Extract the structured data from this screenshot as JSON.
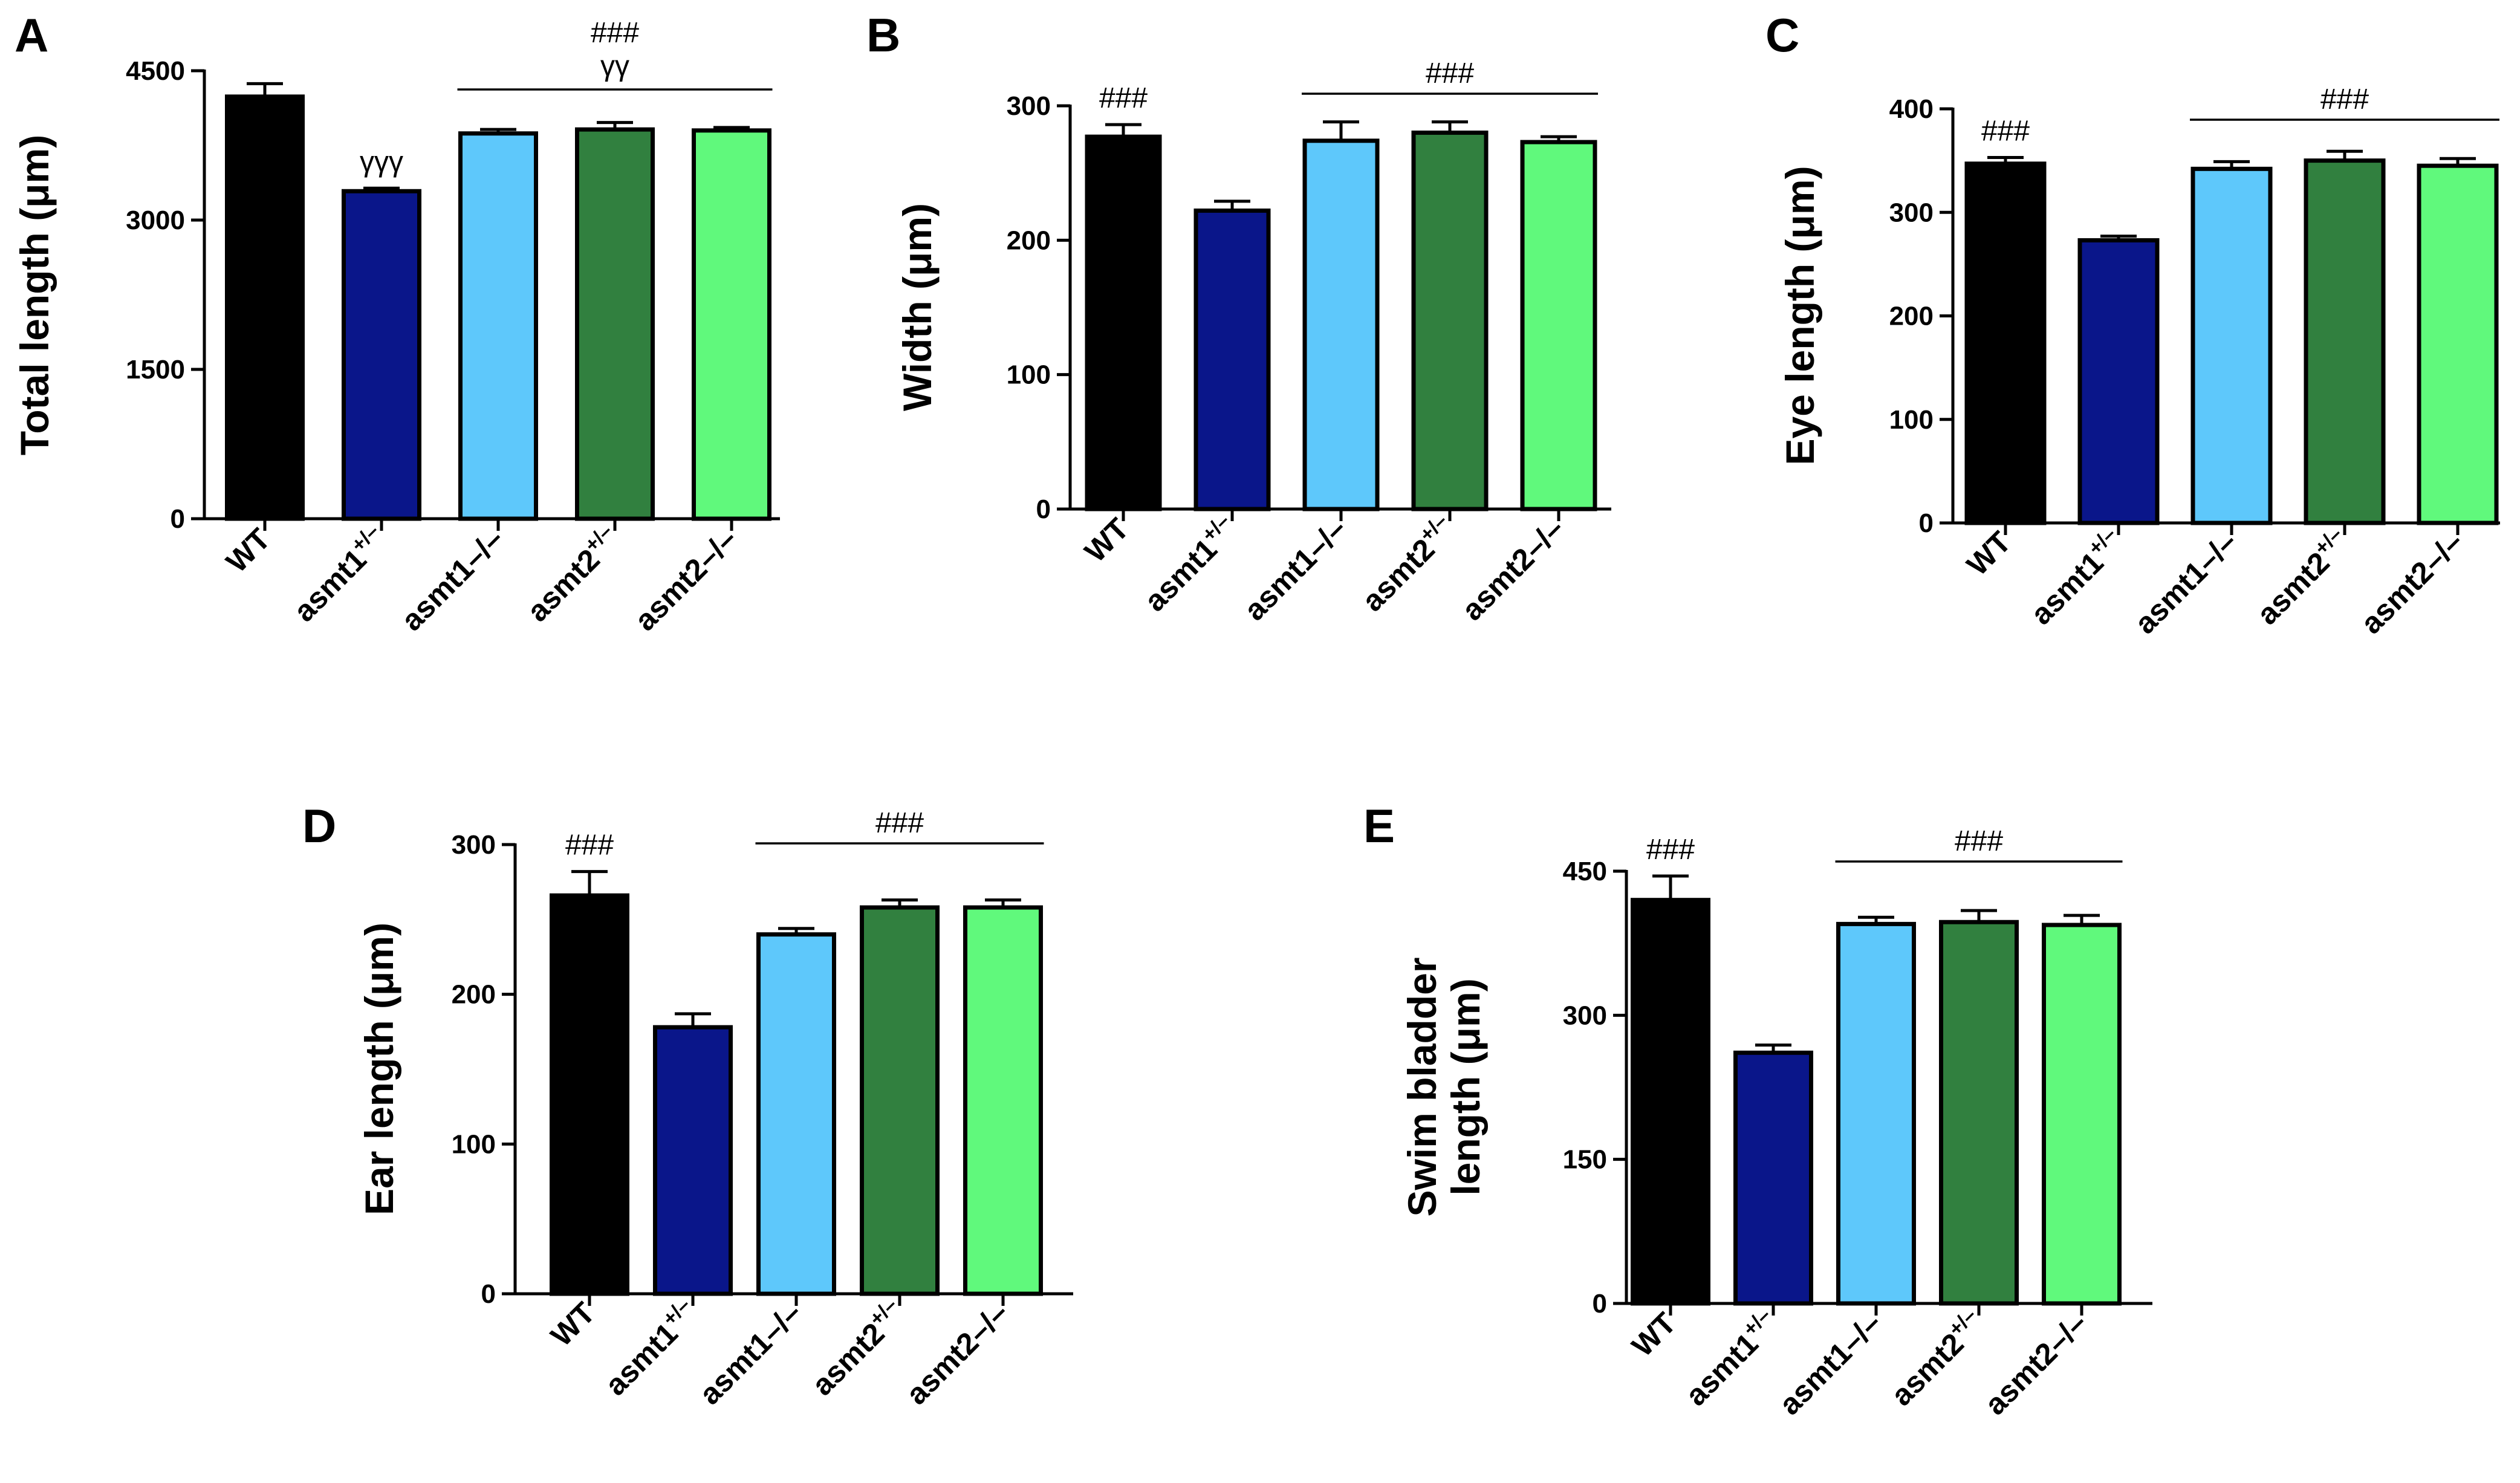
{
  "chart_data": [
    {
      "type": "bar",
      "panel": "A",
      "ylabel": "Total length (μm)",
      "ylim": [
        0,
        4500
      ],
      "yticks": [
        0,
        1500,
        3000,
        4500
      ],
      "categories": [
        {
          "base": "WT",
          "sup": ""
        },
        {
          "base": "asmt1",
          "sup": "+/–"
        },
        {
          "base": "asmt1–/–",
          "sup": ""
        },
        {
          "base": "asmt2",
          "sup": "+/–"
        },
        {
          "base": "asmt2–/–",
          "sup": ""
        }
      ],
      "values": [
        4240,
        3290,
        3870,
        3910,
        3900
      ],
      "errors": [
        130,
        30,
        40,
        70,
        30
      ],
      "colors": [
        "#000000",
        "#0a168a",
        "#5ec8fb",
        "#31803f",
        "#60f97c"
      ],
      "annotations": [
        {
          "text": "γγγ",
          "over": [
            1
          ]
        },
        {
          "text": "###",
          "over": [
            2,
            3,
            4
          ],
          "line": true,
          "row": 1
        },
        {
          "text": "γγ",
          "over": [
            2,
            3,
            4
          ],
          "row": 0
        }
      ]
    },
    {
      "type": "bar",
      "panel": "B",
      "ylabel": "Width (μm)",
      "ylim": [
        0,
        300
      ],
      "yticks": [
        0,
        100,
        200,
        300
      ],
      "categories": [
        {
          "base": "WT",
          "sup": ""
        },
        {
          "base": "asmt1",
          "sup": "+/–"
        },
        {
          "base": "asmt1–/–",
          "sup": ""
        },
        {
          "base": "asmt2",
          "sup": "+/–"
        },
        {
          "base": "asmt2–/–",
          "sup": ""
        }
      ],
      "values": [
        277,
        222,
        274,
        280,
        273
      ],
      "errors": [
        9,
        7,
        14,
        8,
        4
      ],
      "colors": [
        "#000000",
        "#0a168a",
        "#5ec8fb",
        "#31803f",
        "#60f97c"
      ],
      "annotations": [
        {
          "text": "###",
          "over": [
            0
          ]
        },
        {
          "text": "###",
          "over": [
            2,
            3,
            4
          ],
          "line": true,
          "row": 0
        }
      ]
    },
    {
      "type": "bar",
      "panel": "C",
      "ylabel": "Eye length (μm)",
      "ylim": [
        0,
        400
      ],
      "yticks": [
        0,
        100,
        200,
        300,
        400
      ],
      "categories": [
        {
          "base": "WT",
          "sup": ""
        },
        {
          "base": "asmt1",
          "sup": "+/–"
        },
        {
          "base": "asmt1–/–",
          "sup": ""
        },
        {
          "base": "asmt2",
          "sup": "+/–"
        },
        {
          "base": "asmt2–/–",
          "sup": ""
        }
      ],
      "values": [
        347,
        273,
        342,
        350,
        345
      ],
      "errors": [
        6,
        4,
        7,
        9,
        7
      ],
      "colors": [
        "#000000",
        "#0a168a",
        "#5ec8fb",
        "#31803f",
        "#60f97c"
      ],
      "annotations": [
        {
          "text": "###",
          "over": [
            0
          ]
        },
        {
          "text": "###",
          "over": [
            2,
            3,
            4
          ],
          "line": true,
          "row": 0
        }
      ]
    },
    {
      "type": "bar",
      "panel": "D",
      "ylabel": "Ear length (μm)",
      "ylim": [
        0,
        300
      ],
      "yticks": [
        0,
        100,
        200,
        300
      ],
      "categories": [
        {
          "base": "WT",
          "sup": ""
        },
        {
          "base": "asmt1",
          "sup": "+/–"
        },
        {
          "base": "asmt1–/–",
          "sup": ""
        },
        {
          "base": "asmt2",
          "sup": "+/–"
        },
        {
          "base": "asmt2–/–",
          "sup": ""
        }
      ],
      "values": [
        266,
        178,
        240,
        258,
        258
      ],
      "errors": [
        16,
        9,
        4,
        5,
        5
      ],
      "colors": [
        "#000000",
        "#0a168a",
        "#5ec8fb",
        "#31803f",
        "#60f97c"
      ],
      "annotations": [
        {
          "text": "###",
          "over": [
            0
          ]
        },
        {
          "text": "###",
          "over": [
            2,
            3,
            4
          ],
          "line": true,
          "row": 0
        }
      ]
    },
    {
      "type": "bar",
      "panel": "E",
      "ylabel": "Swim bladder length (μm)",
      "ylabel_lines": [
        "Swim bladder",
        "length (μm)"
      ],
      "ylim": [
        0,
        450
      ],
      "yticks": [
        0,
        150,
        300,
        450
      ],
      "categories": [
        {
          "base": "WT",
          "sup": ""
        },
        {
          "base": "asmt1",
          "sup": "+/–"
        },
        {
          "base": "asmt1–/–",
          "sup": ""
        },
        {
          "base": "asmt2",
          "sup": "+/–"
        },
        {
          "base": "asmt2–/–",
          "sup": ""
        }
      ],
      "values": [
        420,
        261,
        395,
        397,
        394
      ],
      "errors": [
        25,
        8,
        7,
        12,
        10
      ],
      "colors": [
        "#000000",
        "#0a168a",
        "#5ec8fb",
        "#31803f",
        "#60f97c"
      ],
      "annotations": [
        {
          "text": "###",
          "over": [
            0
          ]
        },
        {
          "text": "###",
          "over": [
            2,
            3,
            4
          ],
          "line": true,
          "row": 0
        }
      ]
    }
  ]
}
